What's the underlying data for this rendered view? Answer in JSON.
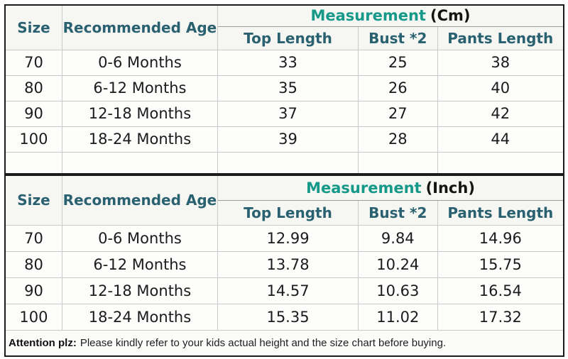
{
  "colors": {
    "header_teal": "#2a6170",
    "measurement_teal": "#169989",
    "text_black": "#1b1b1b",
    "thick_border": "#1b1b1b",
    "thin_border": "#c9c9c9"
  },
  "chart_data": [
    {
      "type": "table",
      "title": "Measurement (Cm)",
      "header": {
        "size": "Size",
        "age": "Recommended Age",
        "measurement": "Measurement",
        "unit": "(Cm)",
        "sub": [
          "Top Length",
          "Bust *2",
          "Pants Length"
        ]
      },
      "rows": [
        [
          "70",
          "0-6 Months",
          "33",
          "25",
          "38"
        ],
        [
          "80",
          "6-12 Months",
          "35",
          "26",
          "40"
        ],
        [
          "90",
          "12-18 Months",
          "37",
          "27",
          "42"
        ],
        [
          "100",
          "18-24 Months",
          "39",
          "28",
          "44"
        ]
      ]
    },
    {
      "type": "table",
      "title": "Measurement (Inch)",
      "header": {
        "size": "Size",
        "age": "Recommended Age",
        "measurement": "Measurement",
        "unit": "(Inch)",
        "sub": [
          "Top Length",
          "Bust *2",
          "Pants Length"
        ]
      },
      "rows": [
        [
          "70",
          "0-6 Months",
          "12.99",
          "9.84",
          "14.96"
        ],
        [
          "80",
          "6-12 Months",
          "13.78",
          "10.24",
          "15.75"
        ],
        [
          "90",
          "12-18 Months",
          "14.57",
          "10.63",
          "16.54"
        ],
        [
          "100",
          "18-24 Months",
          "15.35",
          "11.02",
          "17.32"
        ]
      ]
    }
  ],
  "note": {
    "label": "Attention plz:",
    "text": "Please kindly refer to your kids actual height and the size chart before buying."
  }
}
